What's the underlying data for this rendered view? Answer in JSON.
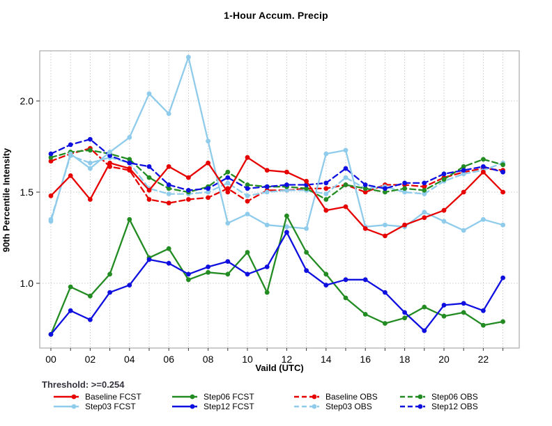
{
  "title": "1-Hour Accum. Precip",
  "axes": {
    "x_label": "Vaild (UTC)",
    "y_label": "90th Percentile Intensity",
    "y_tick_labels": [
      "1.0",
      "1.5",
      "2.0"
    ],
    "x_tick_labels": [
      "00",
      "02",
      "04",
      "06",
      "08",
      "10",
      "12",
      "14",
      "16",
      "18",
      "20",
      "22"
    ]
  },
  "legend": {
    "threshold": "Threshold: >=0.254",
    "items": [
      {
        "label": "Baseline FCST",
        "color": "#e60000",
        "dash": false,
        "row": 0,
        "col": 0
      },
      {
        "label": "Step06 FCST",
        "color": "#228B22",
        "dash": false,
        "row": 0,
        "col": 1
      },
      {
        "label": "Baseline OBS",
        "color": "#e60000",
        "dash": true,
        "row": 0,
        "col": 2
      },
      {
        "label": "Step06 OBS",
        "color": "#228B22",
        "dash": true,
        "row": 0,
        "col": 3
      },
      {
        "label": "Step03 FCST",
        "color": "#8FCBEB",
        "dash": false,
        "row": 1,
        "col": 0
      },
      {
        "label": "Step12 FCST",
        "color": "#0f0fe0",
        "dash": false,
        "row": 1,
        "col": 1
      },
      {
        "label": "Step03 OBS",
        "color": "#8FCBEB",
        "dash": true,
        "row": 1,
        "col": 2
      },
      {
        "label": "Step12 OBS",
        "color": "#0f0fe0",
        "dash": true,
        "row": 1,
        "col": 3
      }
    ]
  },
  "chart_data": {
    "type": "line",
    "title": "1-Hour Accum. Precip",
    "xlabel": "Vaild (UTC)",
    "ylabel": "90th Percentile Intensity",
    "x": [
      0,
      1,
      2,
      3,
      4,
      5,
      6,
      7,
      8,
      9,
      10,
      11,
      12,
      13,
      14,
      15,
      16,
      17,
      18,
      19,
      20,
      21,
      22,
      23
    ],
    "x_tick_positions": [
      0,
      2,
      4,
      6,
      8,
      10,
      12,
      14,
      16,
      18,
      20,
      22
    ],
    "y_ticks": [
      1.0,
      1.5,
      2.0
    ],
    "ylim": [
      0.645,
      2.275
    ],
    "grid": "dotted; vertical line every hour, horizontal at y ticks",
    "legend_position": "bottom",
    "series": [
      {
        "name": "Baseline FCST",
        "style": "solid",
        "color": "#e60000",
        "values": [
          1.48,
          1.59,
          1.46,
          1.66,
          1.63,
          1.51,
          1.64,
          1.58,
          1.66,
          1.5,
          1.69,
          1.62,
          1.61,
          1.56,
          1.4,
          1.42,
          1.3,
          1.26,
          1.32,
          1.36,
          1.4,
          1.5,
          1.61,
          1.5
        ]
      },
      {
        "name": "Step03 FCST",
        "style": "solid",
        "color": "#8FCBEB",
        "values": [
          1.34,
          1.71,
          1.63,
          1.72,
          1.8,
          2.04,
          1.93,
          2.24,
          1.78,
          1.33,
          1.38,
          1.32,
          1.31,
          1.3,
          1.71,
          1.73,
          1.31,
          1.32,
          1.31,
          1.39,
          1.34,
          1.29,
          1.35,
          1.32
        ]
      },
      {
        "name": "Step06 FCST",
        "style": "solid",
        "color": "#228B22",
        "values": [
          0.72,
          0.98,
          0.93,
          1.05,
          1.35,
          1.14,
          1.19,
          1.02,
          1.06,
          1.05,
          1.17,
          0.95,
          1.37,
          1.17,
          1.05,
          0.92,
          0.83,
          0.78,
          0.81,
          0.87,
          0.82,
          0.84,
          0.77,
          0.79
        ]
      },
      {
        "name": "Step12 FCST",
        "style": "solid",
        "color": "#0f0fe0",
        "values": [
          0.72,
          0.85,
          0.8,
          0.95,
          0.99,
          1.13,
          1.11,
          1.05,
          1.09,
          1.12,
          1.05,
          1.09,
          1.28,
          1.07,
          0.99,
          1.02,
          1.02,
          0.95,
          0.84,
          0.74,
          0.88,
          0.89,
          0.85,
          1.03
        ]
      },
      {
        "name": "Baseline OBS",
        "style": "dashed",
        "color": "#e60000",
        "values": [
          1.67,
          1.71,
          1.74,
          1.64,
          1.62,
          1.46,
          1.44,
          1.46,
          1.47,
          1.52,
          1.45,
          1.51,
          1.51,
          1.52,
          1.52,
          1.54,
          1.5,
          1.54,
          1.54,
          1.53,
          1.58,
          1.61,
          1.63,
          1.62
        ]
      },
      {
        "name": "Step03 OBS",
        "style": "dashed",
        "color": "#8FCBEB",
        "values": [
          1.35,
          1.7,
          1.66,
          1.69,
          1.66,
          1.52,
          1.49,
          1.49,
          1.5,
          1.55,
          1.48,
          1.5,
          1.51,
          1.51,
          1.49,
          1.58,
          1.52,
          1.53,
          1.5,
          1.49,
          1.56,
          1.6,
          1.62,
          1.66
        ]
      },
      {
        "name": "Step06 OBS",
        "style": "dashed",
        "color": "#228B22",
        "values": [
          1.69,
          1.72,
          1.73,
          1.71,
          1.68,
          1.58,
          1.52,
          1.5,
          1.53,
          1.61,
          1.54,
          1.53,
          1.53,
          1.52,
          1.46,
          1.54,
          1.52,
          1.5,
          1.52,
          1.51,
          1.57,
          1.64,
          1.68,
          1.65
        ]
      },
      {
        "name": "Step12 OBS",
        "style": "dashed",
        "color": "#0f0fe0",
        "values": [
          1.71,
          1.76,
          1.79,
          1.7,
          1.66,
          1.64,
          1.54,
          1.51,
          1.52,
          1.58,
          1.52,
          1.53,
          1.54,
          1.54,
          1.55,
          1.63,
          1.54,
          1.52,
          1.55,
          1.55,
          1.6,
          1.62,
          1.64,
          1.61
        ]
      }
    ]
  },
  "style": {
    "frame_color": "#ababab",
    "grid_color": "#c9c9c9",
    "tick_color": "#333333"
  }
}
